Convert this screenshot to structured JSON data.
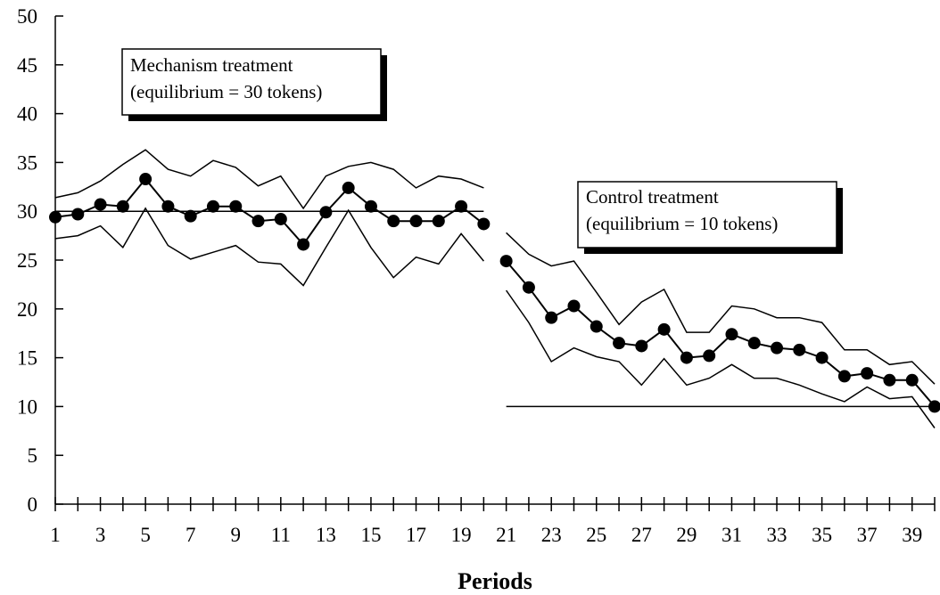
{
  "chart_data": {
    "type": "line",
    "xlabel": "Periods",
    "ylabel": "",
    "ylim": [
      0,
      50
    ],
    "xlim": [
      1,
      40
    ],
    "x_tick_labels": [
      "1",
      "3",
      "5",
      "7",
      "9",
      "11",
      "13",
      "15",
      "17",
      "19",
      "21",
      "23",
      "25",
      "27",
      "29",
      "31",
      "33",
      "35",
      "37",
      "39"
    ],
    "y_tick_labels": [
      "0",
      "5",
      "10",
      "15",
      "20",
      "25",
      "30",
      "35",
      "40",
      "45",
      "50"
    ],
    "grid": false,
    "annotations": [
      {
        "lines": [
          "Mechanism treatment",
          "(equilibrium = 30 tokens)"
        ]
      },
      {
        "lines": [
          "Control treatment",
          "(equilibrium = 10 tokens)"
        ]
      }
    ],
    "segments": [
      {
        "periods": [
          1,
          2,
          3,
          4,
          5,
          6,
          7,
          8,
          9,
          10,
          11,
          12,
          13,
          14,
          15,
          16,
          17,
          18,
          19,
          20
        ],
        "mean": [
          29.4,
          29.7,
          30.7,
          30.5,
          33.3,
          30.5,
          29.5,
          30.5,
          30.5,
          29,
          29.2,
          26.6,
          29.9,
          32.4,
          30.5,
          29,
          29,
          29,
          30.5,
          28.7
        ],
        "upper": [
          31.4,
          31.9,
          33.1,
          34.8,
          36.3,
          34.3,
          33.6,
          35.2,
          34.5,
          32.6,
          33.6,
          30.3,
          33.6,
          34.6,
          35,
          34.3,
          32.4,
          33.6,
          33.3,
          32.4
        ],
        "lower": [
          27.2,
          27.5,
          28.5,
          26.3,
          30.3,
          26.5,
          25.1,
          25.8,
          26.5,
          24.8,
          24.6,
          22.4,
          26.3,
          30.1,
          26.3,
          23.2,
          25.3,
          24.6,
          27.7,
          24.9
        ]
      },
      {
        "periods": [
          21,
          22,
          23,
          24,
          25,
          26,
          27,
          28,
          29,
          30,
          31,
          32,
          33,
          34,
          35,
          36,
          37,
          38,
          39,
          40
        ],
        "mean": [
          24.9,
          22.2,
          19.1,
          20.3,
          18.2,
          16.5,
          16.2,
          17.9,
          15,
          15.2,
          17.4,
          16.5,
          16,
          15.8,
          15,
          13.1,
          13.4,
          12.7,
          12.7,
          10
        ],
        "upper": [
          27.8,
          25.6,
          24.4,
          24.9,
          21.7,
          18.4,
          20.7,
          22,
          17.6,
          17.6,
          20.3,
          20,
          19.1,
          19.1,
          18.6,
          15.8,
          15.8,
          14.3,
          14.6,
          12.3
        ],
        "lower": [
          21.9,
          18.6,
          14.6,
          16,
          15.1,
          14.6,
          12.2,
          14.9,
          12.2,
          12.9,
          14.3,
          12.9,
          12.9,
          12.2,
          11.3,
          10.5,
          12,
          10.8,
          11,
          7.8
        ]
      }
    ],
    "equilibrium_lines": [
      {
        "y": 30,
        "x_from": 1,
        "x_to": 20
      },
      {
        "y": 10,
        "x_from": 21,
        "x_to": 40
      }
    ]
  },
  "colors": {
    "ink": "#000000",
    "background": "#ffffff"
  }
}
